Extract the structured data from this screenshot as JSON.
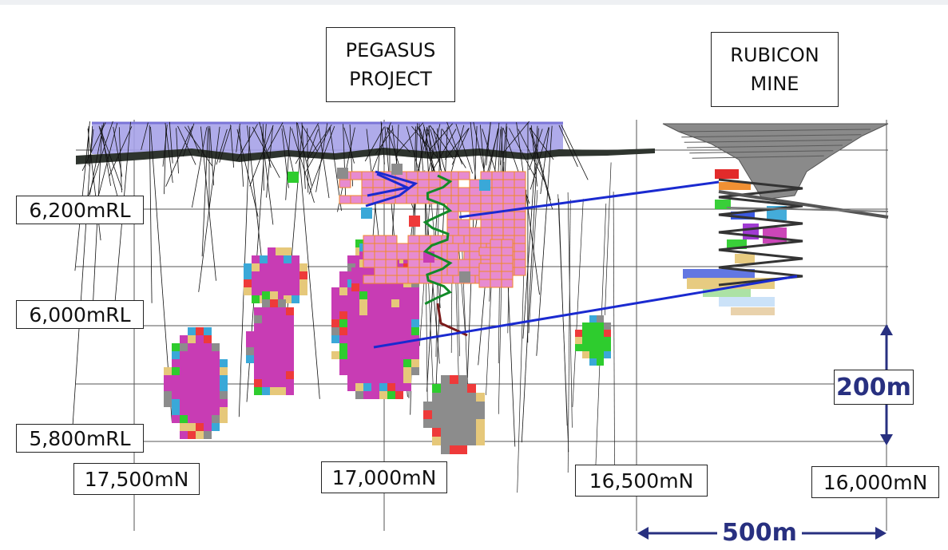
{
  "labels": {
    "pegasus": [
      "PEGASUS",
      "PROJECT"
    ],
    "rubicon": [
      "RUBICON",
      "MINE"
    ]
  },
  "elevations": [
    "6,200mRL",
    "6,000mRL",
    "5,800mRL"
  ],
  "northings": [
    "17,500mN",
    "17,000mN",
    "16,500mN",
    "16,000mN"
  ],
  "scale": {
    "vertical": "200m",
    "horizontal": "500m"
  },
  "colors": {
    "grade_magenta": "#c83cb4",
    "grade_red": "#ee3a3a",
    "grade_green": "#2ecc2e",
    "grade_cyan": "#3aa8d8",
    "grade_gray": "#8c8c8c",
    "grade_tan": "#e6c87a",
    "pink_lode": "#e78bd0",
    "orange_lode": "#f08a28",
    "link_blue": "#1a2ad0",
    "scale_navy": "#283080",
    "pit_gray": "#6a6a6a",
    "surface_lavender": "#a6a2e8"
  }
}
